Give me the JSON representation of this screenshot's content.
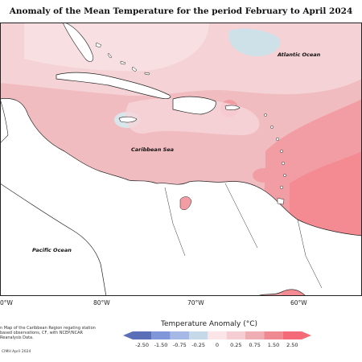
{
  "title": "Anomaly of the Mean Temperature for the period February to April 2024",
  "map": {
    "labels": {
      "atlantic": "Atlantic Ocean",
      "caribbean": "Caribbean Sea",
      "pacific": "Pacific Ocean"
    },
    "longitude_labels": [
      "80°W",
      "70°W",
      "60°W"
    ],
    "left_partial_label": "0°W"
  },
  "legend": {
    "title": "Temperature Anomaly (°C)",
    "ticks": [
      "-2.50",
      "-1.50",
      "-0.75",
      "-0.25",
      "0",
      "0.25",
      "0.75",
      "1.50",
      "2.50"
    ],
    "colors": [
      "#5b6fb8",
      "#7f97d8",
      "#a6b9e6",
      "#c6d9e8",
      "#fbe5e8",
      "#f6cdd2",
      "#efadb4",
      "#ef8a92",
      "#f46a78"
    ]
  },
  "notes": {
    "description": "n Map of the Caribbean Region regating station based observations, CF, with NCEP/NCAR Reanalysis Data.",
    "credit": "CIMH April 2024"
  }
}
